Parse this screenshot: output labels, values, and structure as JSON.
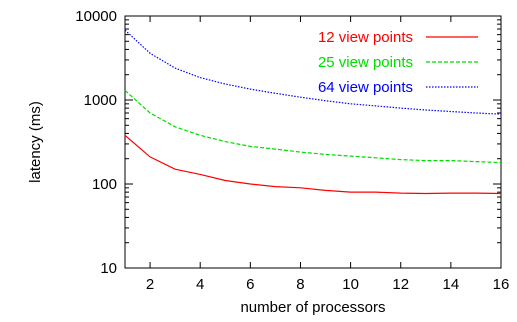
{
  "chart_data": {
    "type": "line",
    "title": "",
    "xlabel": "number of processors",
    "ylabel": "latency (ms)",
    "x_scale": "linear",
    "y_scale": "log",
    "xlim": [
      1,
      16
    ],
    "ylim": [
      10,
      10000
    ],
    "x_ticks": [
      "2",
      "4",
      "6",
      "8",
      "10",
      "12",
      "14",
      "16"
    ],
    "y_ticks": [
      "10",
      "100",
      "1000",
      "10000"
    ],
    "grid": false,
    "legend_position": "top-right",
    "x": [
      1,
      2,
      3,
      4,
      5,
      6,
      7,
      8,
      9,
      10,
      11,
      12,
      13,
      14,
      15,
      16
    ],
    "series": [
      {
        "name": "12 view points",
        "color": "#ff0000",
        "dash": "solid",
        "values": [
          380,
          210,
          150,
          130,
          110,
          100,
          93,
          90,
          84,
          80,
          80,
          78,
          77,
          78,
          78,
          77
        ]
      },
      {
        "name": "25 view points",
        "color": "#00dd00",
        "dash": "dashed",
        "values": [
          1300,
          700,
          480,
          380,
          320,
          280,
          260,
          240,
          225,
          215,
          205,
          195,
          190,
          190,
          185,
          180
        ]
      },
      {
        "name": "64 view points",
        "color": "#0000ff",
        "dash": "dotted",
        "values": [
          6800,
          3600,
          2400,
          1850,
          1550,
          1350,
          1200,
          1080,
          980,
          900,
          850,
          800,
          760,
          730,
          700,
          680
        ]
      }
    ]
  }
}
